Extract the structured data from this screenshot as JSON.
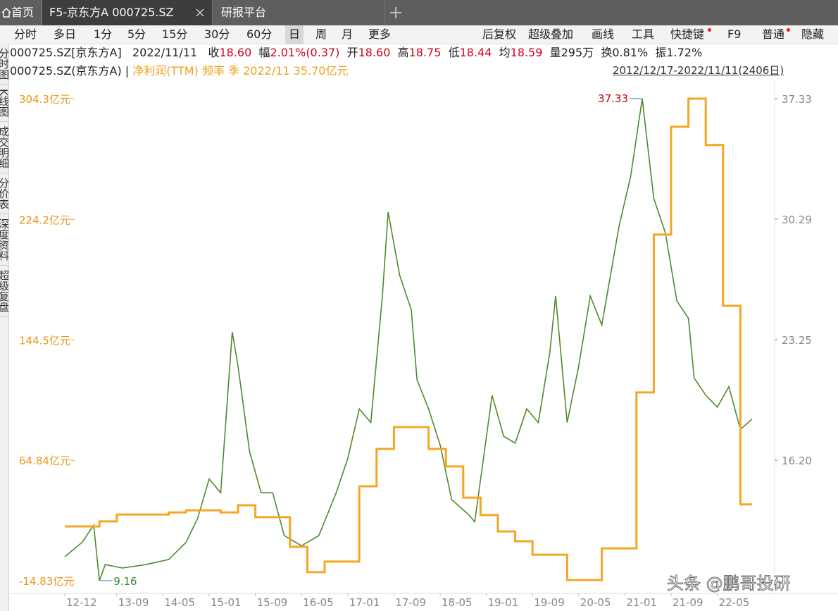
{
  "tabs": [
    "首页",
    "F5-京东方A 000725.SZ",
    "研报平台"
  ],
  "toolbar_left": [
    "分时",
    "多日",
    "1分",
    "5分",
    "15分",
    "30分",
    "60分",
    "日",
    "周",
    "月",
    "更多"
  ],
  "toolbar_right": [
    "后复权",
    "超级叠加",
    "画线",
    "工具",
    "快捷键",
    "F9",
    "普通",
    "隐藏"
  ],
  "sidebar": [
    "分时图",
    "K线图",
    "成交明细",
    "分价表",
    "深度资料",
    "超级复盘"
  ],
  "quote": {
    "code": "000725.SZ[京东方A]",
    "date": "2022/11/11",
    "fields": [
      {
        "label": "收",
        "value": "18.60",
        "color": "#d0021b"
      },
      {
        "label": "幅",
        "value": "2.01%(0.37)",
        "color": "#d0021b"
      },
      {
        "label": "开",
        "value": "18.60",
        "color": "#d0021b"
      },
      {
        "label": "高",
        "value": "18.75",
        "color": "#d0021b"
      },
      {
        "label": "低",
        "value": "18.44",
        "color": "#d0021b"
      },
      {
        "label": "均",
        "value": "18.59",
        "color": "#d0021b"
      },
      {
        "label": "量",
        "value": "295万",
        "color": "#222222"
      },
      {
        "label": "换",
        "value": "0.81%",
        "color": "#222222"
      },
      {
        "label": "振",
        "value": "1.72%",
        "color": "#222222"
      }
    ]
  },
  "indicator": {
    "code": "000725.SZ(京东方A) |",
    "text": "净利润(TTM) 频率 季 2022/11 35.70亿元",
    "range": "2012/12/17-2022/11/11(2406日)"
  },
  "watermark": "头条 @鹏哥投研",
  "chart_data": {
    "type": "line",
    "ylim": [
      -14.83,
      304.3
    ],
    "yticks": [
      {
        "value": 304.3,
        "label": "304.3亿元"
      },
      {
        "value": 224.2,
        "label": "224.2亿元"
      },
      {
        "value": 144.5,
        "label": "144.5亿元"
      },
      {
        "value": 64.84,
        "label": "64.84亿元"
      },
      {
        "value": -14.83,
        "label": "-14.83亿元"
      }
    ],
    "y2lim": [
      9.16,
      37.33
    ],
    "y2ticks": [
      37.33,
      30.29,
      23.25,
      {
        "value": 16.2,
        "label": "16.20"
      }
    ],
    "xticks": [
      "12-12",
      "13-09",
      "14-05",
      "15-01",
      "15-09",
      "16-05",
      "17-01",
      "17-09",
      "18-05",
      "19-01",
      "19-09",
      "20-05",
      "21-01",
      "21-09",
      "22-05"
    ],
    "series": [
      {
        "axis": "y2",
        "style": "line",
        "color": "#4f8a2c",
        "x": [
          "12-12",
          "13-03",
          "13-05",
          "13-06",
          "13-07",
          "13-10",
          "14-02",
          "14-06",
          "14-09",
          "14-11",
          "15-01",
          "15-03",
          "15-05",
          "15-06",
          "15-08",
          "15-10",
          "15-12",
          "16-02",
          "16-05",
          "16-08",
          "16-11",
          "17-01",
          "17-03",
          "17-05",
          "17-07",
          "17-08",
          "17-10",
          "17-12",
          "18-01",
          "18-03",
          "18-05",
          "18-07",
          "18-10",
          "18-11",
          "19-02",
          "19-04",
          "19-06",
          "19-08",
          "19-10",
          "19-12",
          "20-01",
          "20-03",
          "20-05",
          "20-07",
          "20-09",
          "20-12",
          "21-02",
          "21-04",
          "21-06",
          "21-08",
          "21-10",
          "21-12",
          "22-01",
          "22-03",
          "22-05",
          "22-07",
          "22-09",
          "22-11"
        ],
        "values": [
          10.56,
          11.4,
          12.4,
          9.16,
          10.1,
          9.9,
          10.1,
          10.4,
          11.4,
          12.8,
          15.1,
          14.3,
          23.7,
          21.7,
          16.7,
          14.3,
          14.3,
          11.8,
          11.2,
          11.8,
          14.3,
          16.3,
          19.2,
          18.4,
          25.8,
          30.7,
          27.0,
          25.0,
          20.9,
          19.2,
          17.1,
          13.9,
          13.0,
          12.6,
          20.0,
          17.6,
          17.2,
          19.2,
          18.4,
          22.5,
          25.8,
          18.4,
          21.7,
          25.8,
          24.1,
          29.9,
          32.8,
          37.33,
          31.5,
          29.5,
          25.5,
          24.5,
          21.0,
          20.0,
          19.3,
          20.5,
          18.0,
          18.6
        ]
      },
      {
        "axis": "y",
        "style": "step",
        "color": "#f5a623",
        "x": [
          "12-12",
          "13-06",
          "13-09",
          "14-06",
          "14-09",
          "15-03",
          "15-06",
          "15-09",
          "16-03",
          "16-06",
          "16-09",
          "17-03",
          "17-06",
          "17-09",
          "18-03",
          "18-06",
          "18-09",
          "18-12",
          "19-03",
          "19-06",
          "19-09",
          "20-03",
          "20-09",
          "21-03",
          "21-06",
          "21-09",
          "21-12",
          "22-03",
          "22-06",
          "22-09"
        ],
        "values": [
          21.1,
          24.4,
          29.0,
          30.4,
          31.8,
          30.4,
          35.1,
          27.2,
          7.6,
          -9.2,
          -2.2,
          47.7,
          72.4,
          86.9,
          72.4,
          60.8,
          40.2,
          28.6,
          17.8,
          11.3,
          2.4,
          -14.4,
          6.6,
          109.8,
          214.3,
          285.7,
          304.3,
          273.6,
          167.2,
          35.7
        ]
      }
    ],
    "max": {
      "x": "21-04",
      "value": 37.33
    },
    "min": {
      "x": "13-06",
      "value": 9.16
    }
  }
}
